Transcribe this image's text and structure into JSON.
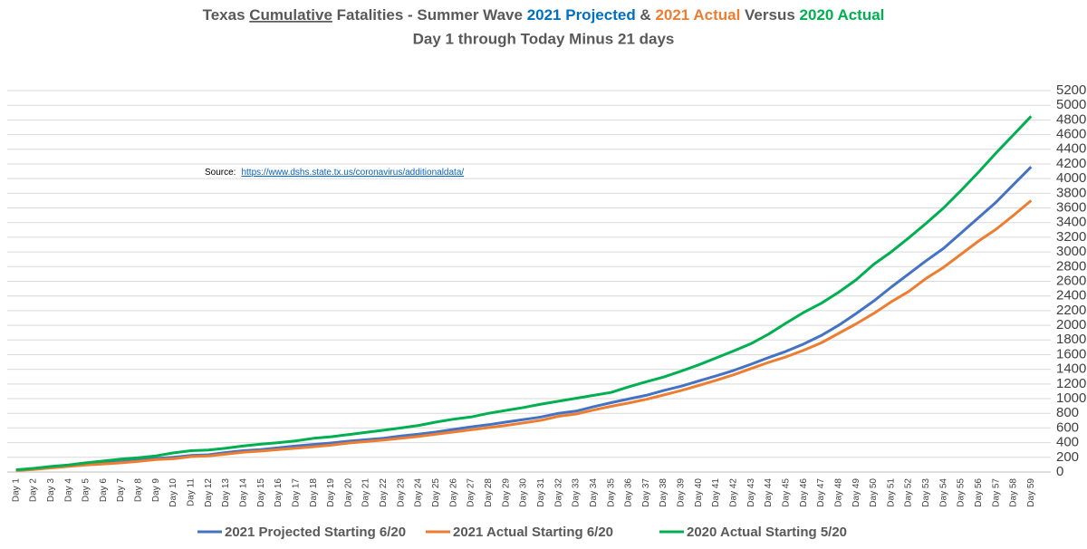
{
  "chart_data": {
    "type": "line",
    "title": [
      "Texas ",
      "Cumulative",
      " Fatalities - Summer Wave ",
      "2021 Projected",
      " & ",
      "2021 Actual",
      "  Versus  ",
      "2020 Actual"
    ],
    "title_colors": [
      "#595959",
      "#595959",
      "#595959",
      "#0070c0",
      "#595959",
      "#ed7d31",
      "#595959",
      "#00b050"
    ],
    "subtitle": "Day 1  through  Today Minus 21 days",
    "source_label": "Source:",
    "source_url": "https://www.dshs.state.tx.us/coronavirus/additionaldata/",
    "categories": [
      "Day 1",
      "Day 2",
      "Day 3",
      "Day 4",
      "Day 5",
      "Day 6",
      "Day 7",
      "Day 8",
      "Day 9",
      "Day 10",
      "Day 11",
      "Day 12",
      "Day 13",
      "Day 14",
      "Day 15",
      "Day 16",
      "Day 17",
      "Day 18",
      "Day 19",
      "Day 20",
      "Day 21",
      "Day 22",
      "Day 23",
      "Day 24",
      "Day 25",
      "Day 26",
      "Day 27",
      "Day 28",
      "Day 29",
      "Day 30",
      "Day 31",
      "Day 32",
      "Day 33",
      "Day 34",
      "Day 35",
      "Day 36",
      "Day 37",
      "Day 38",
      "Day 39",
      "Day 40",
      "Day 41",
      "Day 42",
      "Day 43",
      "Day 44",
      "Day 45",
      "Day 46",
      "Day 47",
      "Day 48",
      "Day 49",
      "Day 50",
      "Day 51",
      "Day 52",
      "Day 53",
      "Day 54",
      "Day 55",
      "Day 56",
      "Day 57",
      "Day 58",
      "Day 59"
    ],
    "series": [
      {
        "name": "2021 Projected Starting 6/20",
        "color": "#4472c4",
        "values": [
          25,
          40,
          60,
          80,
          100,
          120,
          140,
          160,
          185,
          200,
          225,
          235,
          265,
          290,
          305,
          330,
          355,
          375,
          395,
          420,
          440,
          460,
          490,
          515,
          545,
          580,
          615,
          645,
          680,
          715,
          750,
          800,
          830,
          890,
          945,
          995,
          1045,
          1110,
          1170,
          1240,
          1310,
          1385,
          1470,
          1560,
          1645,
          1745,
          1860,
          2000,
          2160,
          2330,
          2520,
          2700,
          2880,
          3050,
          3260,
          3470,
          3680,
          3920,
          4160
        ]
      },
      {
        "name": "2021 Actual Starting 6/20",
        "color": "#ed7d31",
        "values": [
          20,
          35,
          55,
          75,
          95,
          110,
          125,
          145,
          170,
          180,
          210,
          220,
          245,
          270,
          285,
          305,
          325,
          345,
          365,
          395,
          415,
          435,
          460,
          485,
          515,
          545,
          575,
          605,
          635,
          670,
          705,
          760,
          790,
          845,
          895,
          940,
          990,
          1050,
          1110,
          1180,
          1250,
          1325,
          1410,
          1495,
          1570,
          1660,
          1760,
          1890,
          2020,
          2160,
          2320,
          2460,
          2640,
          2790,
          2970,
          3150,
          3310,
          3500,
          3700
        ]
      },
      {
        "name": "2020 Actual Starting 5/20",
        "color": "#00b050",
        "values": [
          30,
          50,
          75,
          95,
          125,
          150,
          175,
          195,
          220,
          260,
          290,
          300,
          325,
          355,
          380,
          400,
          425,
          460,
          480,
          510,
          540,
          570,
          600,
          635,
          680,
          720,
          750,
          800,
          840,
          880,
          925,
          965,
          1005,
          1045,
          1085,
          1160,
          1230,
          1295,
          1375,
          1460,
          1555,
          1650,
          1750,
          1880,
          2030,
          2175,
          2300,
          2450,
          2620,
          2830,
          3000,
          3190,
          3390,
          3600,
          3840,
          4090,
          4350,
          4600,
          4850
        ]
      }
    ],
    "ylim": [
      0,
      5200
    ],
    "yticks": [
      0,
      200,
      400,
      600,
      800,
      1000,
      1200,
      1400,
      1600,
      1800,
      2000,
      2200,
      2400,
      2600,
      2800,
      3000,
      3200,
      3400,
      3600,
      3800,
      4000,
      4200,
      4400,
      4600,
      4800,
      5000,
      5200
    ],
    "grid": true
  }
}
